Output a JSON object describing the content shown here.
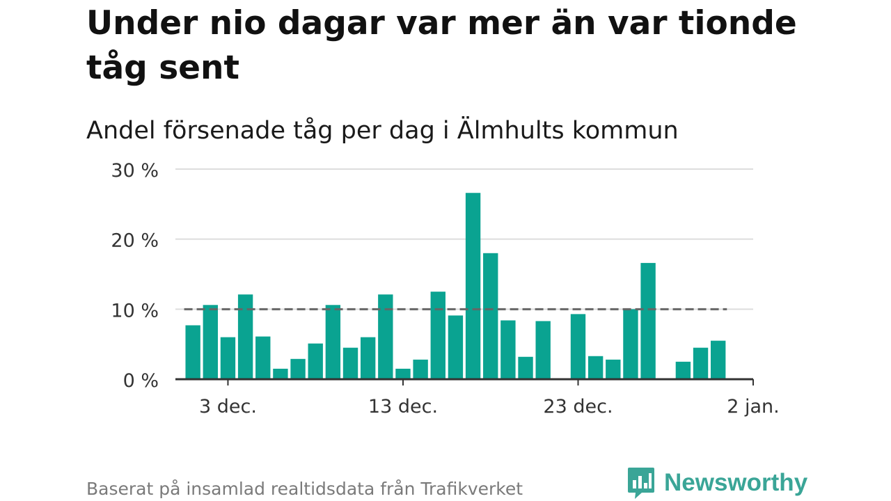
{
  "title": "Under nio dagar var mer än var tionde tåg sent",
  "subtitle": "Andel försenade tåg per dag i Älmhults kommun",
  "footer": "Baserat på insamlad realtidsdata från Trafikverket",
  "brand": {
    "name": "Newsworthy",
    "color": "#3aa597",
    "icon": "newsworthy-logo-icon"
  },
  "colors": {
    "bar": "#0aa391",
    "reference_line": "#666666",
    "grid": "#dddddd",
    "axis": "#333333"
  },
  "chart_data": {
    "type": "bar",
    "x": [
      "2021-12-01",
      "2021-12-02",
      "2021-12-03",
      "2021-12-04",
      "2021-12-05",
      "2021-12-06",
      "2021-12-07",
      "2021-12-08",
      "2021-12-09",
      "2021-12-10",
      "2021-12-11",
      "2021-12-12",
      "2021-12-13",
      "2021-12-14",
      "2021-12-15",
      "2021-12-16",
      "2021-12-17",
      "2021-12-18",
      "2021-12-19",
      "2021-12-20",
      "2021-12-21",
      "2021-12-22",
      "2021-12-23",
      "2021-12-24",
      "2021-12-25",
      "2021-12-26",
      "2021-12-27",
      "2021-12-28",
      "2021-12-29",
      "2021-12-30",
      "2021-12-31",
      "2022-01-01"
    ],
    "values": [
      7.7,
      10.6,
      6.0,
      12.1,
      6.1,
      1.5,
      2.9,
      5.1,
      10.6,
      4.5,
      6.0,
      12.1,
      1.5,
      2.8,
      12.5,
      9.1,
      26.6,
      18.0,
      8.4,
      3.2,
      8.3,
      null,
      9.3,
      3.3,
      2.8,
      10.0,
      16.6,
      null,
      2.5,
      4.5,
      5.5,
      null
    ],
    "reference_value": 10,
    "ylim": [
      0,
      30
    ],
    "yticks": [
      0,
      10,
      20,
      30
    ],
    "ytick_labels": [
      "0 %",
      "10 %",
      "20 %",
      "30 %"
    ],
    "xticks": [
      "2021-12-03",
      "2021-12-13",
      "2021-12-23",
      "2022-01-02"
    ],
    "xtick_labels": [
      "3 dec.",
      "13 dec.",
      "23 dec.",
      "2 jan."
    ],
    "xlim": [
      "2021-11-30",
      "2022-01-02"
    ],
    "grid": true,
    "legend": "none"
  }
}
